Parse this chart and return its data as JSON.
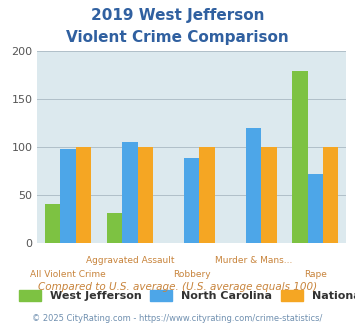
{
  "title_line1": "2019 West Jefferson",
  "title_line2": "Violent Crime Comparison",
  "categories": [
    "All Violent Crime",
    "Aggravated Assault",
    "Robbery",
    "Murder & Mans...",
    "Rape"
  ],
  "west_jefferson": [
    40,
    31,
    0,
    0,
    179
  ],
  "north_carolina": [
    98,
    105,
    88,
    120,
    72
  ],
  "national": [
    100,
    100,
    100,
    100,
    100
  ],
  "wj_color": "#7dc242",
  "nc_color": "#4da6e8",
  "nat_color": "#f5a623",
  "background_color": "#dce9ee",
  "ylim": [
    0,
    200
  ],
  "yticks": [
    0,
    50,
    100,
    150,
    200
  ],
  "footnote": "Compared to U.S. average. (U.S. average equals 100)",
  "copyright": "© 2025 CityRating.com - https://www.cityrating.com/crime-statistics/",
  "legend_labels": [
    "West Jefferson",
    "North Carolina",
    "National"
  ],
  "title_color": "#3060a0",
  "xlabel_color": "#c8843c",
  "footnote_color": "#c8843c",
  "copyright_color": "#7090b0",
  "label_top": [
    "",
    "Aggravated Assault",
    "",
    "Murder & Mans...",
    ""
  ],
  "label_bot": [
    "All Violent Crime",
    "",
    "Robbery",
    "",
    "Rape"
  ]
}
